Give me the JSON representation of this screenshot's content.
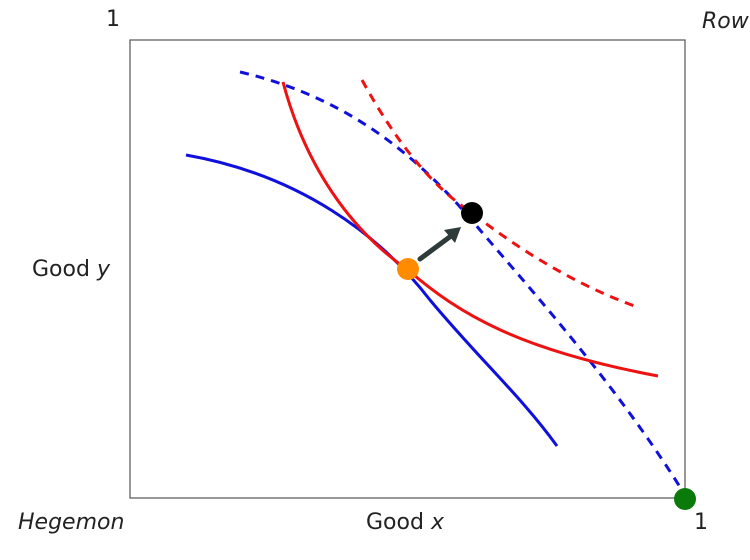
{
  "labels": {
    "top_left_tick": "1",
    "top_right_corner": "Row",
    "left_axis": "Good",
    "left_axis_var": "y",
    "bottom_axis": "Good",
    "bottom_axis_var": "x",
    "bottom_left_corner": "Hegemon",
    "bottom_right_tick": "1"
  },
  "colors": {
    "frame": "#555555",
    "blue": "#1010dd",
    "red": "#ee1111",
    "orange_point": "#ff8c00",
    "black_point": "#000000",
    "green_point": "#0a7a0a",
    "arrow": "#2f3b3b"
  },
  "curves": [
    {
      "id": "blue-solid",
      "color": "blue",
      "style": "solid"
    },
    {
      "id": "blue-dashed",
      "color": "blue",
      "style": "dashed"
    },
    {
      "id": "red-solid",
      "color": "red",
      "style": "solid"
    },
    {
      "id": "red-dashed",
      "color": "red",
      "style": "dashed"
    }
  ],
  "points": [
    {
      "id": "orange",
      "color": "orange_point"
    },
    {
      "id": "black",
      "color": "black_point"
    },
    {
      "id": "green",
      "color": "green_point"
    }
  ]
}
